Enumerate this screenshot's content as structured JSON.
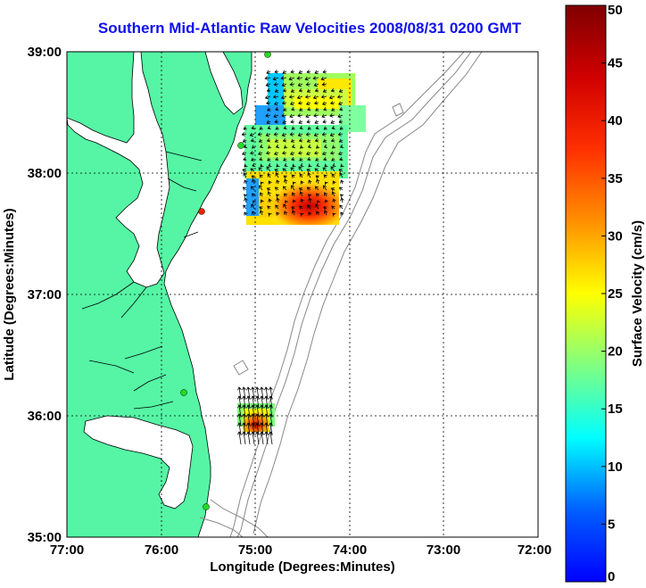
{
  "title": "Southern Mid-Atlantic Raw Velocities 2008/08/31 0200 GMT",
  "map": {
    "xlabel": "Longitude (Degrees:Minutes)",
    "ylabel": "Latitude (Degrees:Minutes)",
    "x_ticks": [
      "77:00",
      "76:00",
      "75:00",
      "74:00",
      "73:00",
      "72:00"
    ],
    "y_ticks": [
      "39:00",
      "38:00",
      "37:00",
      "36:00",
      "35:00"
    ],
    "lon_range": [
      -77,
      -72
    ],
    "lat_range": [
      35,
      39
    ],
    "land_color": "#55f5a5",
    "water_color": "#ffffff",
    "grid": "dotted"
  },
  "colorbar": {
    "label": "Surface Velocity (cm/s)",
    "ticks": [
      "0",
      "5",
      "10",
      "15",
      "20",
      "25",
      "30",
      "35",
      "40",
      "45",
      "50"
    ],
    "range": [
      0,
      50
    ],
    "colormap": "jet"
  }
}
